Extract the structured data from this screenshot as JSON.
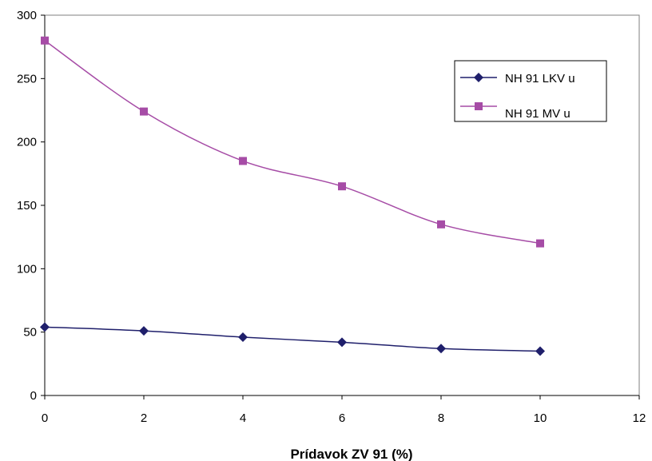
{
  "chart_data": {
    "type": "line",
    "title": "",
    "xlabel": "Prídavok ZV 91 (%)",
    "ylabel": "",
    "xlim": [
      0,
      12
    ],
    "ylim": [
      0,
      300
    ],
    "x_ticks": [
      "0",
      "2",
      "4",
      "6",
      "8",
      "10",
      "12"
    ],
    "y_ticks": [
      "0",
      "50",
      "100",
      "150",
      "200",
      "250",
      "300"
    ],
    "grid": false,
    "legend_position": "top-right",
    "series": [
      {
        "name": "NH 91 LKV u",
        "color": "#1f1f6b",
        "marker": "diamond",
        "x": [
          0,
          2,
          4,
          6,
          8,
          10
        ],
        "y": [
          54,
          51,
          46,
          42,
          37,
          35
        ]
      },
      {
        "name": "NH 91 MV u",
        "color": "#a64ca6",
        "marker": "square",
        "x": [
          0,
          2,
          4,
          6,
          8,
          10
        ],
        "y": [
          280,
          224,
          185,
          165,
          135,
          120
        ]
      }
    ]
  }
}
